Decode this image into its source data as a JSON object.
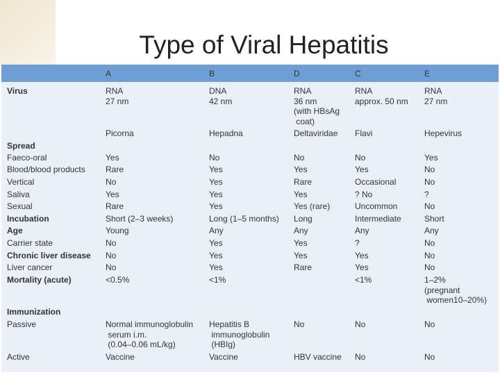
{
  "header": {
    "title": "Type of Viral Hepatitis"
  },
  "table": {
    "columns": [
      "A",
      "B",
      "D",
      "C",
      "E"
    ],
    "rows": [
      {
        "label": "Virus",
        "bold": true,
        "cells": [
          [
            "RNA",
            "27 nm"
          ],
          [
            "DNA",
            "42 nm"
          ],
          [
            "RNA",
            "36 nm",
            "(with HBsAg",
            " coat)"
          ],
          [
            "RNA",
            "approx. 50 nm"
          ],
          [
            "RNA",
            "27 nm"
          ]
        ]
      },
      {
        "label": null,
        "bold": false,
        "cells": [
          [
            "Picorna"
          ],
          [
            "Hepadna"
          ],
          [
            "Deltaviridae"
          ],
          [
            "Flavi"
          ],
          [
            "Hepevirus"
          ]
        ]
      },
      {
        "label": "Spread",
        "bold": true,
        "cells": [
          [],
          [],
          [],
          [],
          []
        ]
      },
      {
        "label": "Faeco-oral",
        "bold": false,
        "cells": [
          [
            "Yes"
          ],
          [
            "No"
          ],
          [
            "No"
          ],
          [
            "No"
          ],
          [
            "Yes"
          ]
        ]
      },
      {
        "label": "Blood/blood products",
        "bold": false,
        "cells": [
          [
            "Rare"
          ],
          [
            "Yes"
          ],
          [
            "Yes"
          ],
          [
            "Yes"
          ],
          [
            "No"
          ]
        ]
      },
      {
        "label": "Vertical",
        "bold": false,
        "cells": [
          [
            "No"
          ],
          [
            "Yes"
          ],
          [
            "Rare"
          ],
          [
            "Occasional"
          ],
          [
            "No"
          ]
        ]
      },
      {
        "label": "Saliva",
        "bold": false,
        "cells": [
          [
            "Yes"
          ],
          [
            "Yes"
          ],
          [
            "Yes"
          ],
          [
            "? No"
          ],
          [
            "?"
          ]
        ]
      },
      {
        "label": "Sexual",
        "bold": false,
        "cells": [
          [
            "Rare"
          ],
          [
            "Yes"
          ],
          [
            "Yes (rare)"
          ],
          [
            "Uncommon"
          ],
          [
            "No"
          ]
        ]
      },
      {
        "label": "Incubation",
        "bold": true,
        "cells": [
          [
            "Short (2–3 weeks)"
          ],
          [
            "Long (1–5 months)"
          ],
          [
            "Long"
          ],
          [
            "Intermediate"
          ],
          [
            "Short"
          ]
        ]
      },
      {
        "label": "Age",
        "bold": true,
        "cells": [
          [
            "Young"
          ],
          [
            "Any"
          ],
          [
            "Any"
          ],
          [
            "Any"
          ],
          [
            "Any"
          ]
        ]
      },
      {
        "label": "Carrier state",
        "bold": false,
        "cells": [
          [
            "No"
          ],
          [
            "Yes"
          ],
          [
            "Yes"
          ],
          [
            "?"
          ],
          [
            "No"
          ]
        ]
      },
      {
        "label": "Chronic liver disease",
        "bold": true,
        "cells": [
          [
            "No"
          ],
          [
            "Yes"
          ],
          [
            "Yes"
          ],
          [
            "Yes"
          ],
          [
            "No"
          ]
        ]
      },
      {
        "label": "Liver cancer",
        "bold": false,
        "cells": [
          [
            "No"
          ],
          [
            "Yes"
          ],
          [
            "Rare"
          ],
          [
            "Yes"
          ],
          [
            "No"
          ]
        ]
      },
      {
        "label": "Mortality (acute)",
        "bold": true,
        "cells": [
          [
            "<0.5%"
          ],
          [
            "<1%"
          ],
          [],
          [
            "<1%"
          ],
          [
            "1–2%",
            "(pregnant",
            " women10–20%)"
          ]
        ]
      },
      {
        "label": "Immunization",
        "bold": true,
        "cells": [
          [],
          [],
          [],
          [],
          []
        ]
      },
      {
        "label": "Passive",
        "bold": false,
        "cells": [
          [
            "Normal immunoglobulin",
            " serum i.m.",
            " (0.04–0.06 mL/kg)"
          ],
          [
            "Hepatitis B",
            " immunoglobulin",
            " (HBIg)"
          ],
          [
            "No"
          ],
          [
            "No"
          ],
          [
            "No"
          ]
        ]
      },
      {
        "label": "Active",
        "bold": false,
        "cells": [
          [
            "Vaccine"
          ],
          [
            "Vaccine"
          ],
          [
            "HBV vaccine"
          ],
          [
            "No"
          ],
          [
            "No"
          ]
        ]
      }
    ]
  }
}
